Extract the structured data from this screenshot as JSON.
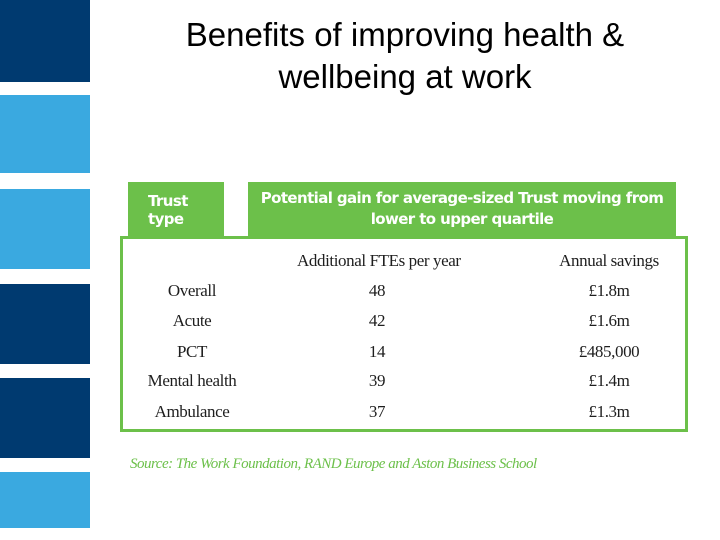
{
  "slide": {
    "title_line1": "Benefits of improving health &",
    "title_line2": "wellbeing at work"
  },
  "table": {
    "header_trust_type": "Trust type",
    "header_gain_line1": "Potential gain for average-sized Trust moving from",
    "header_gain_line2": "lower to upper quartile",
    "col_ftes": "Additional FTEs per year",
    "col_savings": "Annual savings",
    "rows": [
      {
        "type": "Overall",
        "ftes": "48",
        "savings": "£1.8m"
      },
      {
        "type": "Acute",
        "ftes": "42",
        "savings": "£1.6m"
      },
      {
        "type": "PCT",
        "ftes": "14",
        "savings": "£485,000"
      },
      {
        "type": "Mental health",
        "ftes": "39",
        "savings": "£1.4m"
      },
      {
        "type": "Ambulance",
        "ftes": "37",
        "savings": "£1.3m"
      }
    ],
    "source": "Source: The Work Foundation, RAND Europe and Aston Business School"
  },
  "colors": {
    "dark_blue": "#003a70",
    "light_blue": "#3aa9e0",
    "green": "#6cc04a"
  }
}
